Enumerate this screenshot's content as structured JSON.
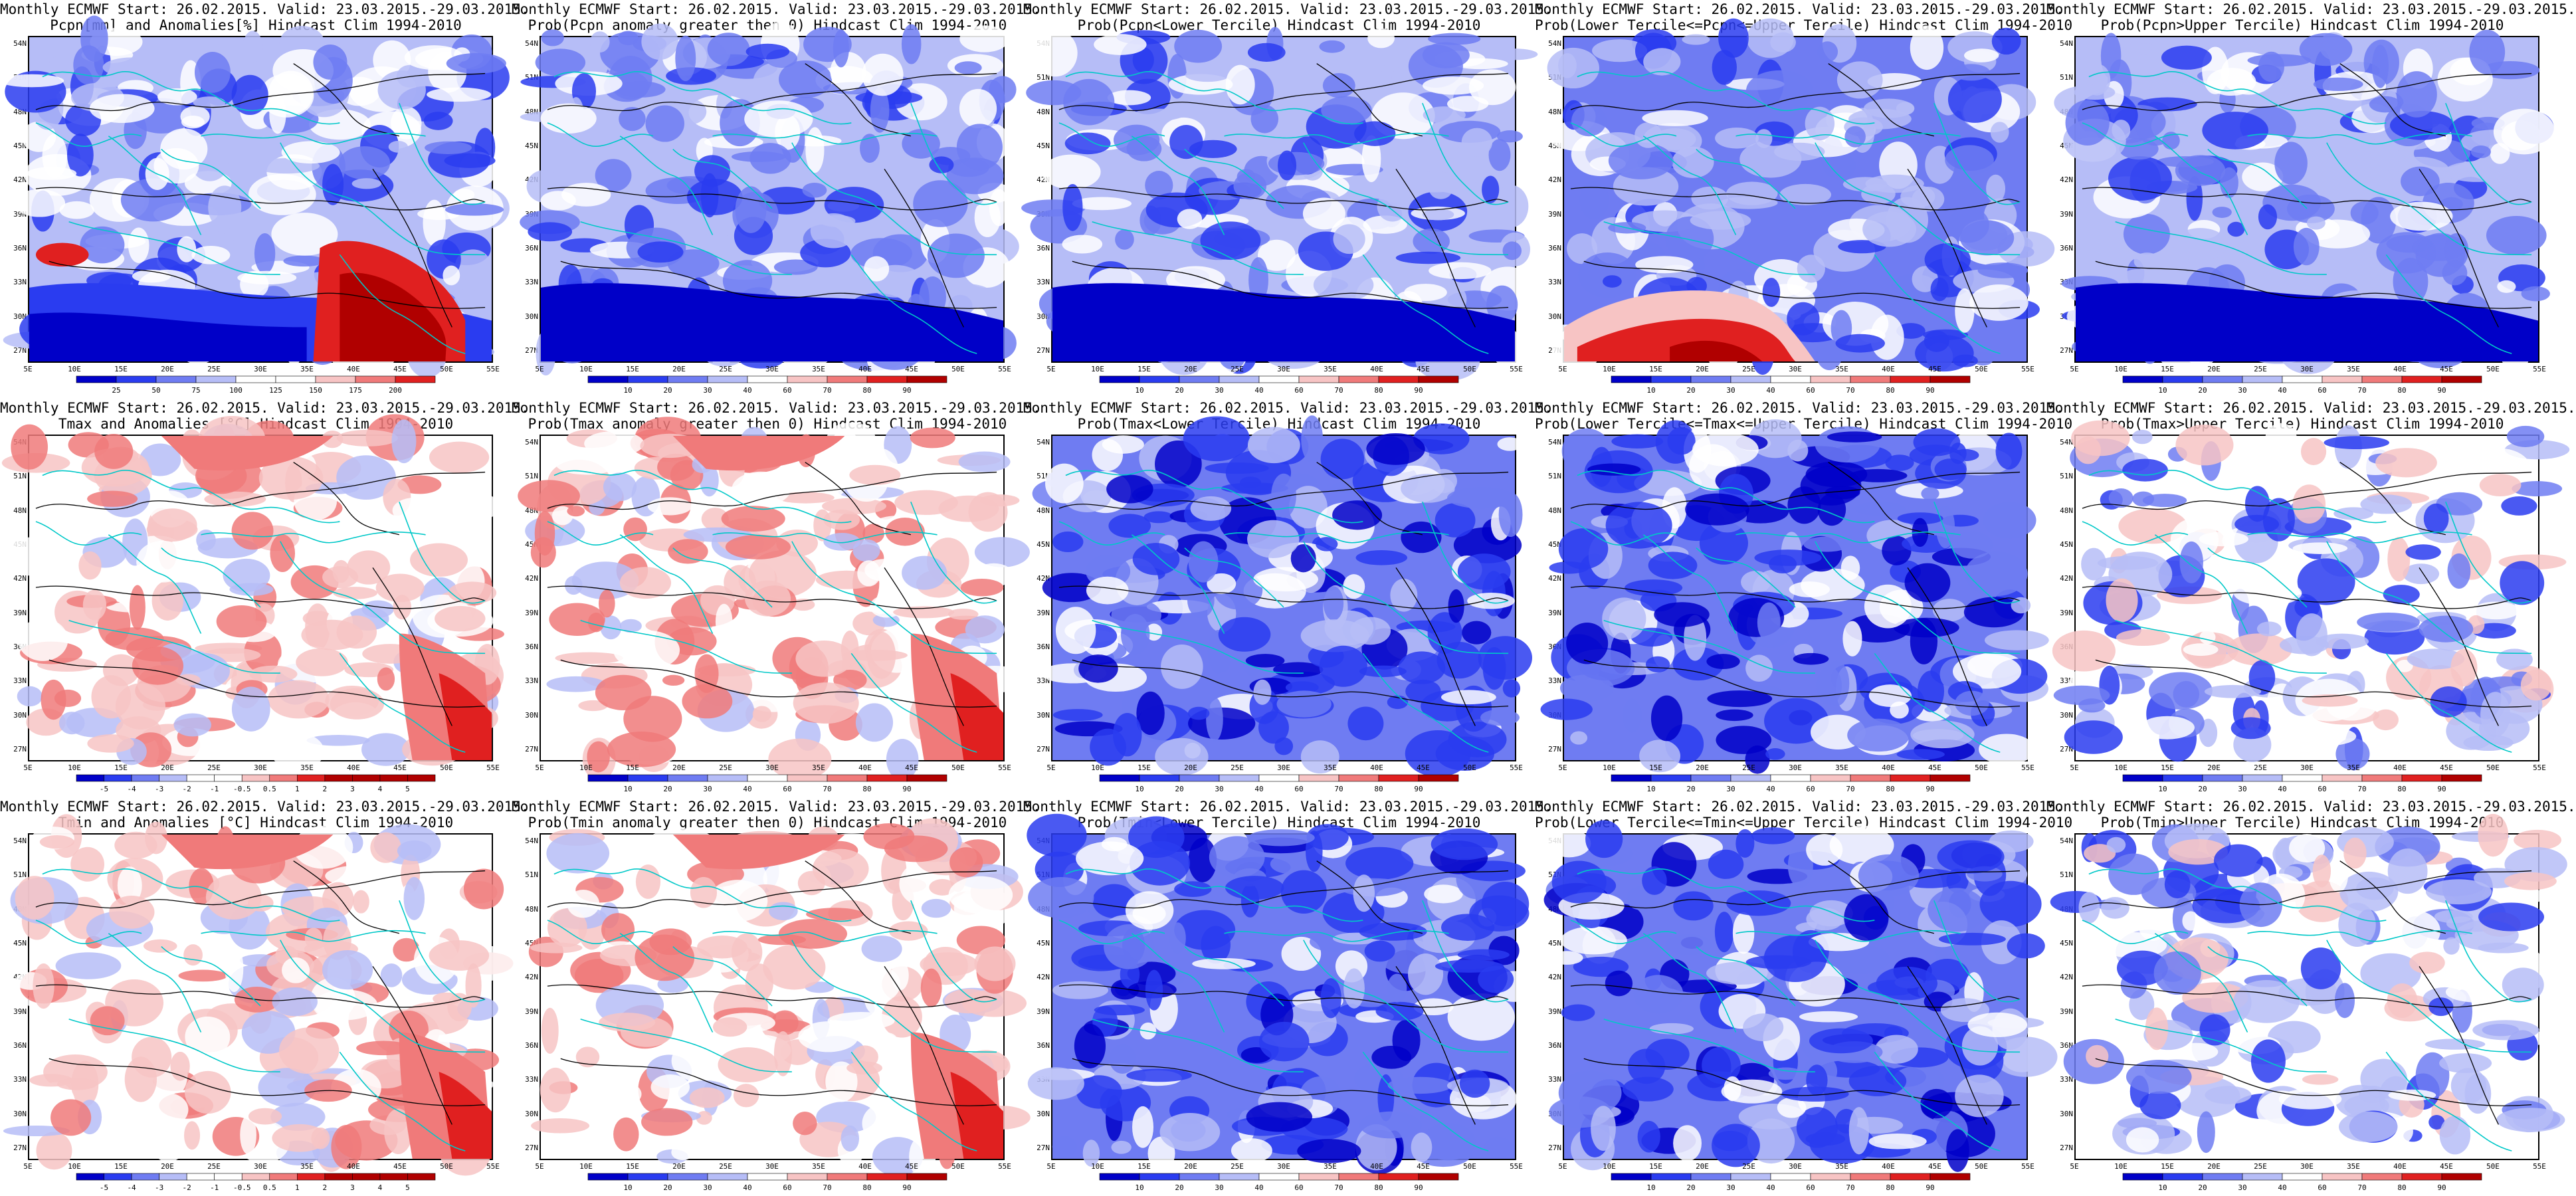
{
  "panels": [
    {
      "title1": "Monthly ECMWF Start: 26.02.2015. Valid: 23.03.2015.-29.03.2015.",
      "title2": "Pcpn[mm] and Anomalies[%] Hindcast Clim 1994-2010",
      "scheme": "pcpn_anom",
      "colorbar_labels": [
        "25",
        "50",
        "75",
        "100",
        "125",
        "150",
        "175",
        "200"
      ]
    },
    {
      "title1": "Monthly ECMWF Start: 26.02.2015. Valid: 23.03.2015.-29.03.2015.",
      "title2": "Prob(Pcpn anomaly greater then 0) Hindcast Clim 1994-2010",
      "scheme": "prob_low",
      "colorbar_labels": [
        "10",
        "20",
        "30",
        "40",
        "60",
        "70",
        "80",
        "90"
      ]
    },
    {
      "title1": "Monthly ECMWF Start: 26.02.2015. Valid: 23.03.2015.-29.03.2015.",
      "title2": "Prob(Pcpn<Lower Tercile) Hindcast Clim 1994-2010",
      "scheme": "prob_low",
      "colorbar_labels": [
        "10",
        "20",
        "30",
        "40",
        "60",
        "70",
        "80",
        "90"
      ]
    },
    {
      "title1": "Monthly ECMWF Start: 26.02.2015. Valid: 23.03.2015.-29.03.2015.",
      "title2": "Prob(Lower Tercile<=Pcpn<=Upper Tercile) Hindcast Clim 1994-2010",
      "scheme": "prob_mid_red",
      "colorbar_labels": [
        "10",
        "20",
        "30",
        "40",
        "60",
        "70",
        "80",
        "90"
      ]
    },
    {
      "title1": "Monthly ECMWF Start: 26.02.2015. Valid: 23.03.2015.-29.03.2015.",
      "title2": "Prob(Pcpn>Upper Tercile) Hindcast Clim 1994-2010",
      "scheme": "prob_low",
      "colorbar_labels": [
        "10",
        "20",
        "30",
        "40",
        "60",
        "70",
        "80",
        "90"
      ]
    },
    {
      "title1": "Monthly ECMWF Start: 26.02.2015. Valid: 23.03.2015.-29.03.2015.",
      "title2": "Tmax and Anomalies [°C] Hindcast Clim 1994-2010",
      "scheme": "temp_anom",
      "colorbar_labels": [
        "-5",
        "-4",
        "-3",
        "-2",
        "-1",
        "-0.5",
        "0.5",
        "1",
        "2",
        "3",
        "4",
        "5"
      ]
    },
    {
      "title1": "Monthly ECMWF Start: 26.02.2015. Valid: 23.03.2015.-29.03.2015.",
      "title2": "Prob(Tmax anomaly greater then 0) Hindcast Clim 1994-2010",
      "scheme": "prob_warm",
      "colorbar_labels": [
        "10",
        "20",
        "30",
        "40",
        "60",
        "70",
        "80",
        "90"
      ]
    },
    {
      "title1": "Monthly ECMWF Start: 26.02.2015. Valid: 23.03.2015.-29.03.2015.",
      "title2": "Prob(Tmax<Lower Tercile) Hindcast Clim 1994-2010",
      "scheme": "prob_cold",
      "colorbar_labels": [
        "10",
        "20",
        "30",
        "40",
        "60",
        "70",
        "80",
        "90"
      ]
    },
    {
      "title1": "Monthly ECMWF Start: 26.02.2015. Valid: 23.03.2015.-29.03.2015.",
      "title2": "Prob(Lower Tercile<=Tmax<=Upper Tercile) Hindcast Clim 1994-2010",
      "scheme": "prob_cold",
      "colorbar_labels": [
        "10",
        "20",
        "30",
        "40",
        "60",
        "70",
        "80",
        "90"
      ]
    },
    {
      "title1": "Monthly ECMWF Start: 26.02.2015. Valid: 23.03.2015.-29.03.2015.",
      "title2": "Prob(Tmax>Upper Tercile) Hindcast Clim 1994-2010",
      "scheme": "prob_mixed",
      "colorbar_labels": [
        "10",
        "20",
        "30",
        "40",
        "60",
        "70",
        "80",
        "90"
      ]
    },
    {
      "title1": "Monthly ECMWF Start: 26.02.2015. Valid: 23.03.2015.-29.03.2015.",
      "title2": "Tmin and Anomalies [°C] Hindcast Clim 1994-2010",
      "scheme": "temp_anom",
      "colorbar_labels": [
        "-5",
        "-4",
        "-3",
        "-2",
        "-1",
        "-0.5",
        "0.5",
        "1",
        "2",
        "3",
        "4",
        "5"
      ]
    },
    {
      "title1": "Monthly ECMWF Start: 26.02.2015. Valid: 23.03.2015.-29.03.2015.",
      "title2": "Prob(Tmin anomaly greater then 0) Hindcast Clim 1994-2010",
      "scheme": "prob_warm",
      "colorbar_labels": [
        "10",
        "20",
        "30",
        "40",
        "60",
        "70",
        "80",
        "90"
      ]
    },
    {
      "title1": "Monthly ECMWF Start: 26.02.2015. Valid: 23.03.2015.-29.03.2015.",
      "title2": "Prob(Tmin<Lower Tercile) Hindcast Clim 1994-2010",
      "scheme": "prob_cold",
      "colorbar_labels": [
        "10",
        "20",
        "30",
        "40",
        "60",
        "70",
        "80",
        "90"
      ]
    },
    {
      "title1": "Monthly ECMWF Start: 26.02.2015. Valid: 23.03.2015.-29.03.2015.",
      "title2": "Prob(Lower Tercile<=Tmin<=Upper Tercile) Hindcast Clim 1994-2010",
      "scheme": "prob_cold",
      "colorbar_labels": [
        "10",
        "20",
        "30",
        "40",
        "60",
        "70",
        "80",
        "90"
      ]
    },
    {
      "title1": "Monthly ECMWF Start: 26.02.2015. Valid: 23.03.2015.-29.03.2015.",
      "title2": "Prob(Tmin>Upper Tercile) Hindcast Clim 1994-2010",
      "scheme": "prob_mixed",
      "colorbar_labels": [
        "10",
        "20",
        "30",
        "40",
        "60",
        "70",
        "80",
        "90"
      ]
    }
  ],
  "lat_labels": [
    "54N",
    "51N",
    "48N",
    "45N",
    "42N",
    "39N",
    "36N",
    "33N",
    "30N",
    "27N"
  ],
  "lon_labels": [
    "5E",
    "10E",
    "15E",
    "20E",
    "25E",
    "30E",
    "35E",
    "40E",
    "45E",
    "50E",
    "55E"
  ],
  "colors": {
    "dark_blue": "#0000c8",
    "blue": "#2a3cf0",
    "mid_blue": "#6f7cf2",
    "light_blue": "#b6bdf7",
    "white": "#ffffff",
    "light_red": "#f7c4c4",
    "mid_red": "#f07a7a",
    "red": "#e02020",
    "dark_red": "#b00000",
    "coast": "#00c8c8",
    "contour": "#000000"
  }
}
